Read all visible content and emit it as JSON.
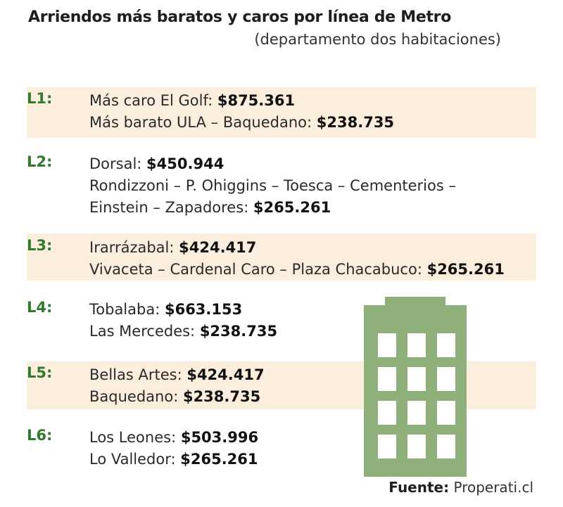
{
  "title": "Arriendos más baratos y caros por línea de Metro",
  "subtitle": "(departamento dos habitaciones)",
  "lines": [
    {
      "label": "L1:",
      "entries": [
        {
          "text": "Más caro El Golf: ",
          "price": "$875.361"
        },
        {
          "text": "Más barato ULA – Baquedano: ",
          "price": "$238.735"
        }
      ]
    },
    {
      "label": "L2:",
      "entries": [
        {
          "text": "Dorsal: ",
          "price": "$450.944"
        },
        {
          "text": "Rondizzoni – P. Ohiggins – Toesca – Cementerios –",
          "price": ""
        },
        {
          "text": "Einstein – Zapadores: ",
          "price": "$265.261"
        }
      ]
    },
    {
      "label": "L3:",
      "entries": [
        {
          "text": "Irarrázabal: ",
          "price": "$424.417"
        },
        {
          "text": "Vivaceta – Cardenal Caro – Plaza Chacabuco: ",
          "price": "$265.261"
        }
      ]
    },
    {
      "label": "L4:",
      "entries": [
        {
          "text": "Tobalaba: ",
          "price": "$663.153"
        },
        {
          "text": "Las Mercedes: ",
          "price": "$238.735"
        }
      ]
    },
    {
      "label": "L5:",
      "entries": [
        {
          "text": "Bellas Artes: ",
          "price": "$424.417"
        },
        {
          "text": "Baquedano: ",
          "price": "$238.735"
        }
      ]
    },
    {
      "label": "L6:",
      "entries": [
        {
          "text": "Los Leones: ",
          "price": "$503.996"
        },
        {
          "text": "Lo Valledor: ",
          "price": "$265.261"
        }
      ]
    }
  ],
  "source": {
    "label": "Fuente:",
    "value": "Properati.cl"
  },
  "colors": {
    "band": "#fbeedd",
    "line_label": "#2f7a2f",
    "building": "#8fb07a"
  },
  "icons": {
    "building": "building-icon"
  }
}
